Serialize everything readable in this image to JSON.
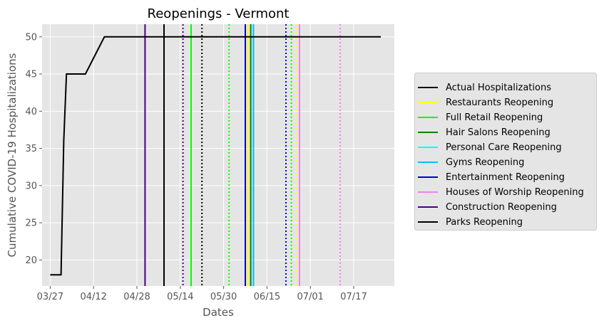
{
  "chart_data": {
    "type": "line",
    "title": "Reopenings - Vermont",
    "xlabel": "Dates",
    "ylabel": "Cumulative COVID-19 Hospitalizations",
    "ylim": [
      16.5,
      51.7
    ],
    "xlim": [
      "2020-03-24",
      "2020-08-01"
    ],
    "x_ticks": [
      {
        "date": "2020-03-27",
        "label": "03/27"
      },
      {
        "date": "2020-04-12",
        "label": "04/12"
      },
      {
        "date": "2020-04-28",
        "label": "04/28"
      },
      {
        "date": "2020-05-14",
        "label": "05/14"
      },
      {
        "date": "2020-05-30",
        "label": "05/30"
      },
      {
        "date": "2020-06-15",
        "label": "06/15"
      },
      {
        "date": "2020-07-01",
        "label": "07/01"
      },
      {
        "date": "2020-07-17",
        "label": "07/17"
      }
    ],
    "y_ticks": [
      20,
      25,
      30,
      35,
      40,
      45,
      50
    ],
    "grid": true,
    "legend_position": "right",
    "series": [
      {
        "name": "Actual Hospitalizations",
        "color": "#000000",
        "style": "solid",
        "points": [
          {
            "x": "2020-03-27",
            "y": 18
          },
          {
            "x": "2020-03-31",
            "y": 18
          },
          {
            "x": "2020-04-01",
            "y": 36
          },
          {
            "x": "2020-04-02",
            "y": 45
          },
          {
            "x": "2020-04-09",
            "y": 45
          },
          {
            "x": "2020-04-16",
            "y": 50
          },
          {
            "x": "2020-07-27",
            "y": 50
          }
        ]
      }
    ],
    "reopenings": [
      {
        "name": "Restaurants Reopening",
        "color": "#ffff00",
        "lines": [
          {
            "date": "2020-06-08",
            "style": "solid"
          },
          {
            "date": "2020-06-26",
            "style": "dotted"
          }
        ]
      },
      {
        "name": "Full Retail Reopening",
        "color": "#00ff00",
        "lines": [
          {
            "date": "2020-05-18",
            "style": "solid"
          },
          {
            "date": "2020-06-01",
            "style": "dotted"
          },
          {
            "date": "2020-06-24",
            "style": "dotted"
          }
        ]
      },
      {
        "name": "Hair Salons Reopening",
        "color": "#008000",
        "lines": [
          {
            "date": "2020-06-09",
            "style": "solid"
          }
        ]
      },
      {
        "name": "Personal Care Reopening",
        "color": "#00ffff",
        "lines": [
          {
            "date": "2020-06-10",
            "style": "solid"
          }
        ]
      },
      {
        "name": "Gyms Reopening",
        "color": "#00bfff",
        "lines": [
          {
            "date": "2020-06-10",
            "style": "solid"
          }
        ]
      },
      {
        "name": "Entertainment Reopening",
        "color": "#0000cd",
        "lines": [
          {
            "date": "2020-06-07",
            "style": "solid"
          },
          {
            "date": "2020-06-22",
            "style": "dotted"
          }
        ]
      },
      {
        "name": "Houses of Worship Reopening",
        "color": "#ee82ee",
        "lines": [
          {
            "date": "2020-06-27",
            "style": "solid"
          },
          {
            "date": "2020-07-12",
            "style": "dotted"
          }
        ]
      },
      {
        "name": "Construction Reopening",
        "color": "#4b0082",
        "lines": [
          {
            "date": "2020-05-01",
            "style": "solid"
          },
          {
            "date": "2020-05-15",
            "style": "dotted"
          }
        ]
      },
      {
        "name": "Parks Reopening",
        "color": "#000000",
        "lines": [
          {
            "date": "2020-05-08",
            "style": "solid"
          },
          {
            "date": "2020-05-22",
            "style": "dotted"
          }
        ]
      }
    ]
  }
}
